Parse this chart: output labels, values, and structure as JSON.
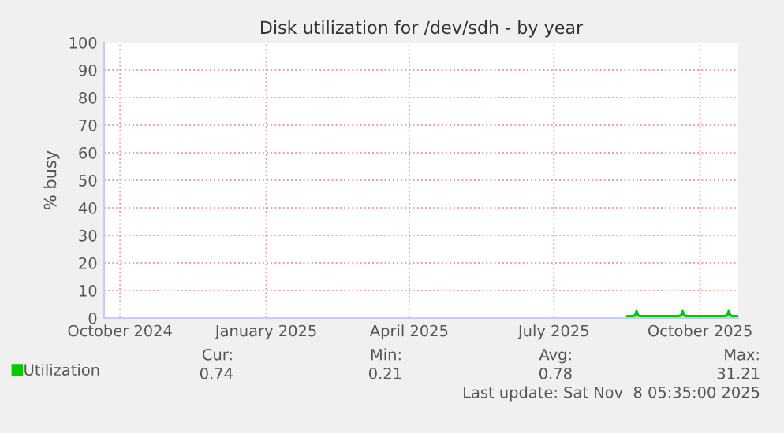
{
  "chart_data": {
    "type": "line",
    "title": "Disk utilization for /dev/sdh - by year",
    "ylabel": "% busy",
    "xlim": [
      "2024-10-05",
      "2025-11-08"
    ],
    "ylim": [
      0,
      100
    ],
    "xticks": [
      {
        "value": "2024-10-15",
        "label": "October 2024"
      },
      {
        "value": "2025-01-15",
        "label": "January 2025"
      },
      {
        "value": "2025-04-15",
        "label": "April 2025"
      },
      {
        "value": "2025-07-15",
        "label": "July 2025"
      },
      {
        "value": "2025-10-15",
        "label": "October 2025"
      }
    ],
    "yticks": [
      0,
      10,
      20,
      30,
      40,
      50,
      60,
      70,
      80,
      90,
      100
    ],
    "grid": true,
    "legend": "bottom left",
    "series": [
      {
        "name": "Utilization",
        "color": "#00cc00",
        "x": [
          "2025-08-30",
          "2025-09-02",
          "2025-09-04",
          "2025-09-05",
          "2025-09-06",
          "2025-09-08",
          "2025-09-15",
          "2025-09-22",
          "2025-09-29",
          "2025-10-01",
          "2025-10-03",
          "2025-10-04",
          "2025-10-05",
          "2025-10-07",
          "2025-10-14",
          "2025-10-21",
          "2025-10-28",
          "2025-10-30",
          "2025-11-01",
          "2025-11-02",
          "2025-11-03",
          "2025-11-05",
          "2025-11-08"
        ],
        "values": [
          0.7,
          0.7,
          0.9,
          2.5,
          0.9,
          0.7,
          0.7,
          0.7,
          0.7,
          0.7,
          0.9,
          2.5,
          0.9,
          0.7,
          0.7,
          0.7,
          0.7,
          0.7,
          0.9,
          2.5,
          0.9,
          0.7,
          0.7
        ]
      }
    ],
    "annotations": [
      "Cur:",
      "Min:",
      "Avg:",
      "Max:",
      "0.74",
      "0.21",
      "0.78",
      "31.21",
      "Last update: Sat Nov  8 05:35:00 2025"
    ]
  }
}
